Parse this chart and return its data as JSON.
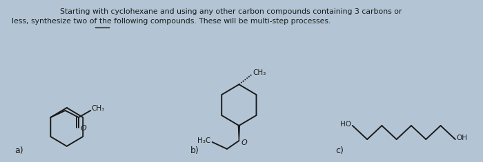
{
  "bg_color": "#b3c5d4",
  "text_color": "#1a1a1a",
  "label_a": "a)",
  "label_b": "b)",
  "label_c": "c)"
}
